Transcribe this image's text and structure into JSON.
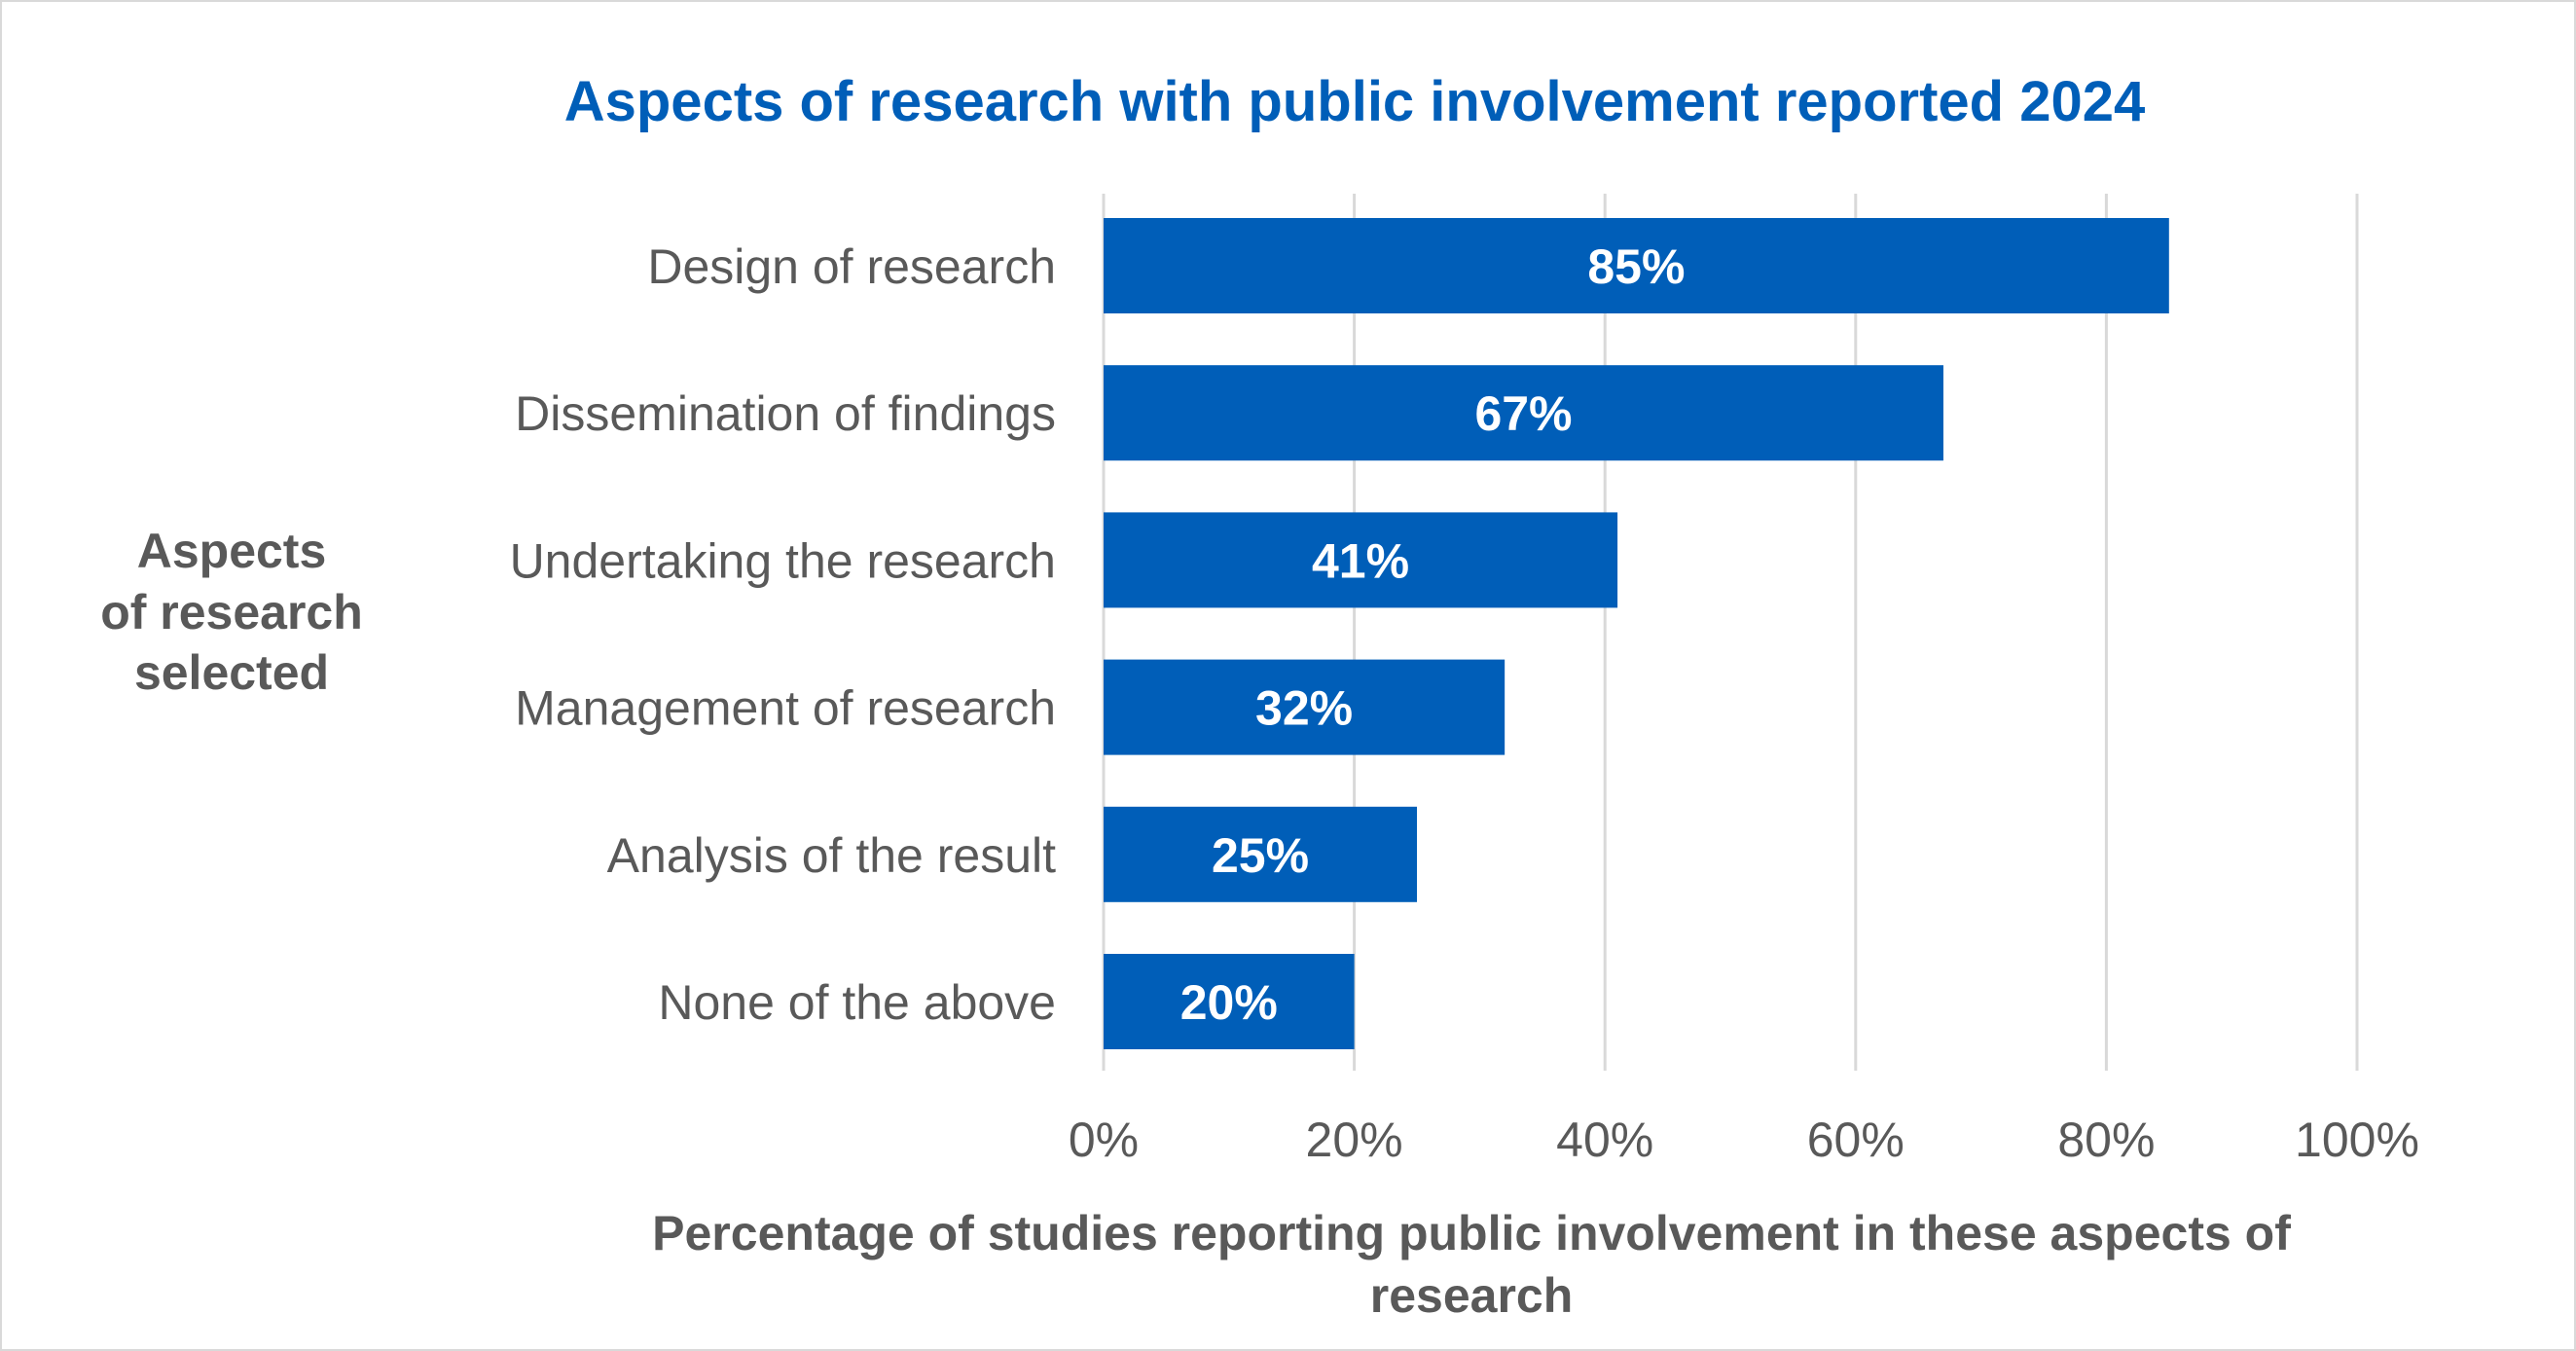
{
  "chart_data": {
    "type": "bar",
    "orientation": "horizontal",
    "title": "Aspects of research with public involvement reported 2024",
    "xlabel": "Percentage of studies reporting public involvement in these aspects of research",
    "xlabel_lines": [
      "Percentage of studies reporting public involvement in these aspects of",
      "research"
    ],
    "ylabel": "Aspects of research selected",
    "ylabel_lines": [
      "Aspects",
      "of research",
      "selected"
    ],
    "categories": [
      "Design of research",
      "Dissemination of findings",
      "Undertaking the research",
      "Management of research",
      "Analysis of the result",
      "None of the above"
    ],
    "values": [
      85,
      67,
      41,
      32,
      25,
      20
    ],
    "data_labels": [
      "85%",
      "67%",
      "41%",
      "32%",
      "25%",
      "20%"
    ],
    "xlim": [
      0,
      100
    ],
    "xticks": [
      0,
      20,
      40,
      60,
      80,
      100
    ],
    "xtick_labels": [
      "0%",
      "20%",
      "40%",
      "60%",
      "80%",
      "100%"
    ],
    "grid": "vertical",
    "legend": "none",
    "colors": {
      "bar": "#005EB8",
      "title": "#005EB8",
      "text": "#595959",
      "grid": "#D9D9D9"
    }
  }
}
